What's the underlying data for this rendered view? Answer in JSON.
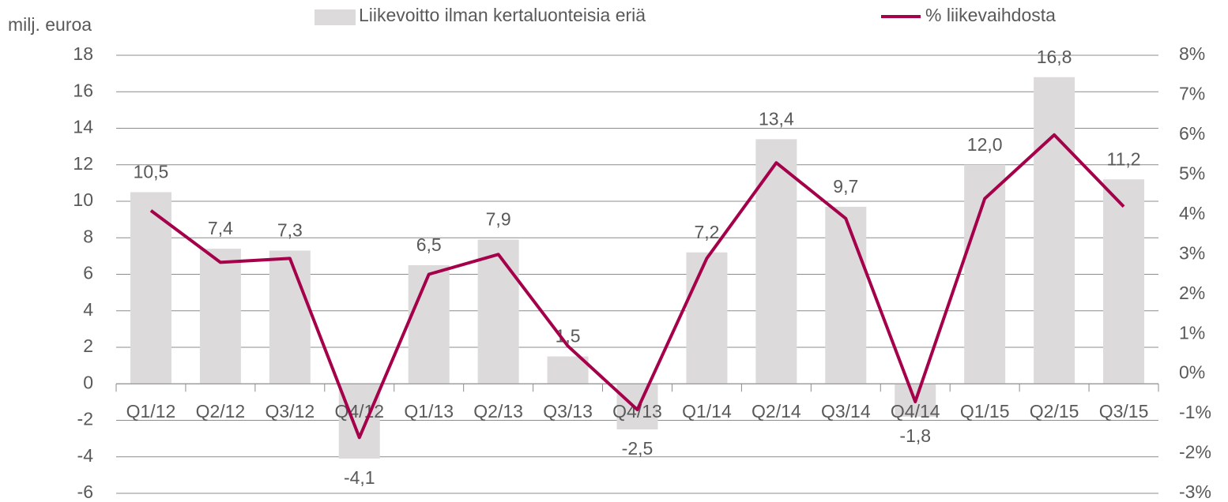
{
  "chart_data": {
    "type": "bar_line",
    "y_label": "milj. euroa",
    "categories": [
      "Q1/12",
      "Q2/12",
      "Q3/12",
      "Q4/12",
      "Q1/13",
      "Q2/13",
      "Q3/13",
      "Q4/13",
      "Q1/14",
      "Q2/14",
      "Q3/14",
      "Q4/14",
      "Q1/15",
      "Q2/15",
      "Q3/15"
    ],
    "series": [
      {
        "name": "Liikevoitto ilman kertaluonteisia eriä",
        "type": "bar",
        "color": "#dcdada",
        "values": [
          10.5,
          7.4,
          7.3,
          -4.1,
          6.5,
          7.9,
          1.5,
          -2.5,
          7.2,
          13.4,
          9.7,
          -1.8,
          12.0,
          16.8,
          11.2
        ],
        "value_labels": [
          "10,5",
          "7,4",
          "7,3",
          "-4,1",
          "6,5",
          "7,9",
          "1,5",
          "-2,5",
          "7,2",
          "13,4",
          "9,7",
          "-1,8",
          "12,0",
          "16,8",
          "11,2"
        ]
      },
      {
        "name": "% liikevaihdosta",
        "type": "line",
        "color": "#a5004a",
        "axis": "y2",
        "values": [
          4.1,
          2.8,
          2.9,
          -1.6,
          2.5,
          3.0,
          0.7,
          -0.9,
          2.9,
          5.3,
          3.9,
          -0.7,
          4.4,
          6.0,
          4.2
        ]
      }
    ],
    "ylim": [
      -6,
      18
    ],
    "yticks": [
      -6,
      -4,
      -2,
      0,
      2,
      4,
      6,
      8,
      10,
      12,
      14,
      16,
      18
    ],
    "y2lim": [
      -3,
      8
    ],
    "y2ticks": [
      {
        "value": -3,
        "label": "-3%"
      },
      {
        "value": -2,
        "label": "-2%"
      },
      {
        "value": -1,
        "label": "-1%"
      },
      {
        "value": 0,
        "label": "0%"
      },
      {
        "value": 1,
        "label": "1%"
      },
      {
        "value": 2,
        "label": "2%"
      },
      {
        "value": 3,
        "label": "3%"
      },
      {
        "value": 4,
        "label": "4%"
      },
      {
        "value": 5,
        "label": "5%"
      },
      {
        "value": 6,
        "label": "6%"
      },
      {
        "value": 7,
        "label": "7%"
      },
      {
        "value": 8,
        "label": "8%"
      }
    ],
    "grid": true
  }
}
